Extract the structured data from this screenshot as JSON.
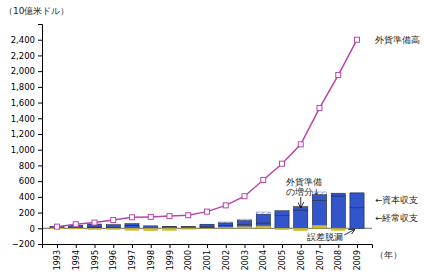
{
  "chart_data": {
    "type": "bar",
    "stacked": true,
    "grid": false,
    "xlabel": "（年）",
    "ylabel": "（10億米ドル）",
    "x": [
      1993,
      1994,
      1995,
      1996,
      1997,
      1998,
      1999,
      2000,
      2001,
      2002,
      2003,
      2004,
      2005,
      2006,
      2007,
      2008,
      2009
    ],
    "xlim": [
      1992.2,
      2009.8
    ],
    "xticks": [
      1993,
      1994,
      1995,
      1996,
      1997,
      1998,
      1999,
      2000,
      2001,
      2002,
      2003,
      2004,
      2005,
      2006,
      2007,
      2008,
      2009
    ],
    "ylim": [
      -200,
      2600
    ],
    "yticks": [
      {
        "value": -200,
        "label": "−200"
      },
      0,
      200,
      400,
      600,
      800,
      {
        "value": 1000,
        "label": "1,000"
      },
      {
        "value": 1200,
        "label": "1,200"
      },
      {
        "value": 1400,
        "label": "1,400"
      },
      {
        "value": 1600,
        "label": "1,600"
      },
      {
        "value": 1800,
        "label": "1,800"
      },
      {
        "value": 2000,
        "label": "2,000"
      },
      {
        "value": 2200,
        "label": "2,200"
      },
      {
        "value": 2400,
        "label": "2,400"
      }
    ],
    "series": [
      {
        "name": "外貨準備\nの増分↓",
        "type": "bar",
        "color": "#5577ee",
        "values": [
          16,
          30,
          22,
          32,
          35,
          5,
          10,
          11,
          46,
          80,
          116,
          207,
          207,
          246,
          462,
          420,
          450
        ]
      },
      {
        "name": "←経常収支",
        "type": "bar",
        "color": "#3355cc",
        "values": [
          0,
          7,
          16,
          7,
          37,
          31,
          21,
          20,
          17,
          35,
          45,
          68,
          161,
          232,
          354,
          412,
          261
        ]
      },
      {
        "name": "←資本収支",
        "type": "bar",
        "color": "#3355cc",
        "values": [
          23,
          32,
          38,
          40,
          23,
          -6,
          5,
          2,
          35,
          33,
          53,
          111,
          63,
          44,
          73,
          35,
          189
        ]
      },
      {
        "name": "誤差脱漏",
        "type": "bar",
        "color": "#ccbb33",
        "values": [
          -7,
          -9,
          -16,
          -15,
          -25,
          -30,
          -26,
          -12,
          -5,
          12,
          18,
          28,
          -17,
          -30,
          35,
          -27,
          0
        ]
      },
      {
        "name": "外貨準備高",
        "type": "line",
        "color": "#bb44aa",
        "marker": "square",
        "line_style": "solid",
        "values": [
          21,
          51,
          73,
          105,
          140,
          145,
          155,
          166,
          212,
          292,
          408,
          615,
          822,
          1068,
          1530,
          1950,
          2400
        ]
      }
    ]
  }
}
